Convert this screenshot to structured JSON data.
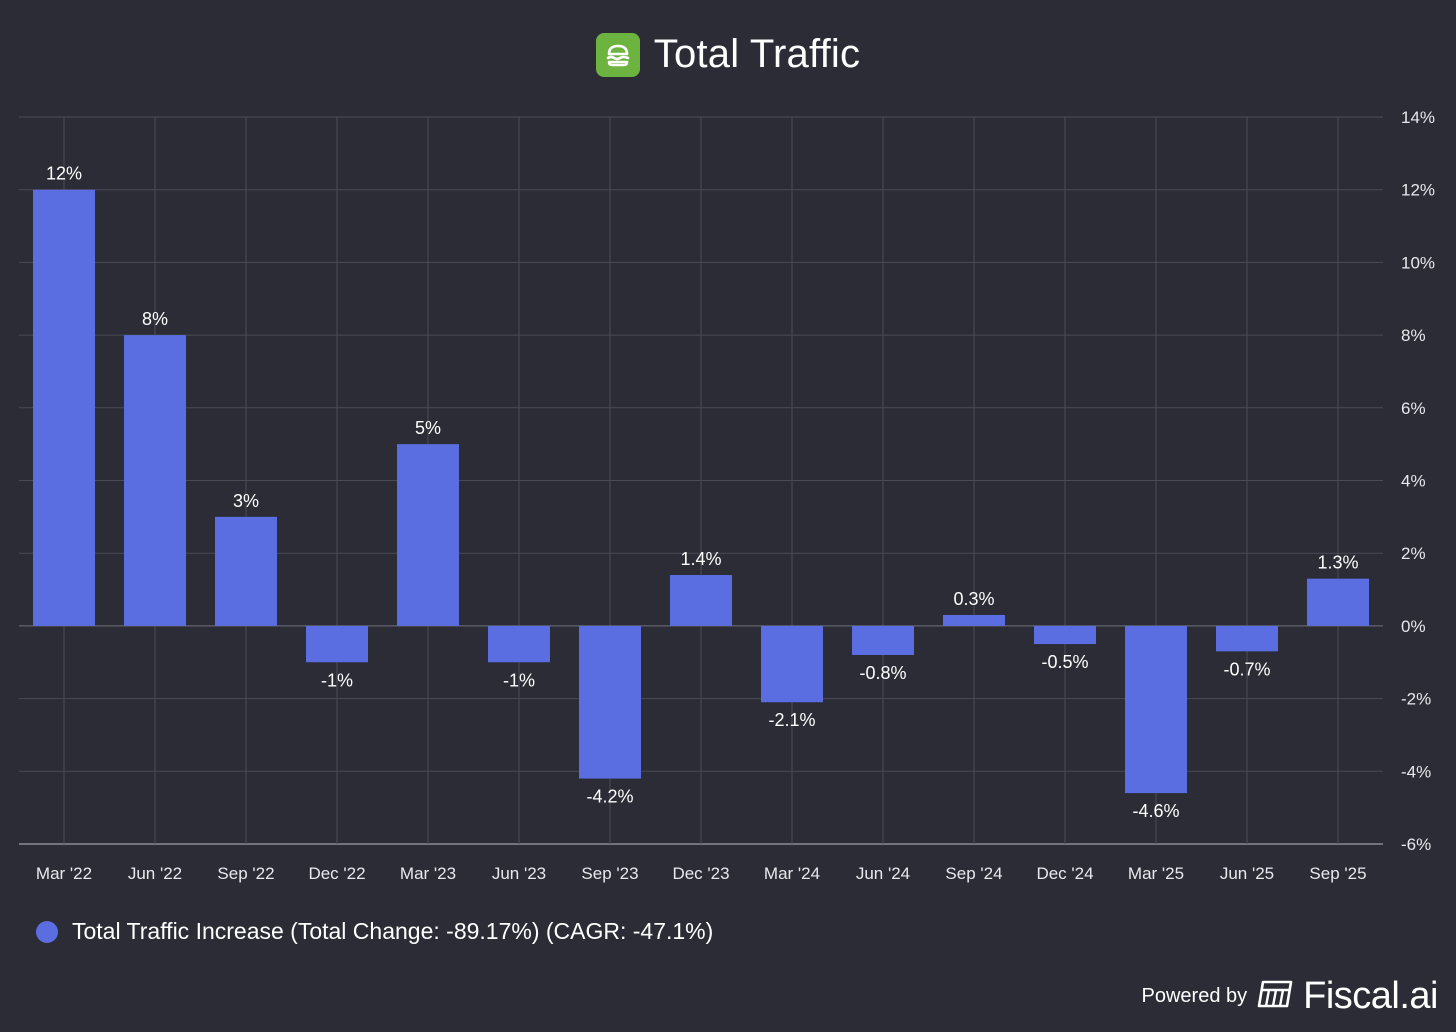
{
  "header": {
    "title": "Total Traffic",
    "logo_icon": "burger-icon",
    "logo_color": "#6cb33f"
  },
  "chart_data": {
    "type": "bar",
    "title": "Total Traffic",
    "categories": [
      "Mar '22",
      "Jun '22",
      "Sep '22",
      "Dec '22",
      "Mar '23",
      "Jun '23",
      "Sep '23",
      "Dec '23",
      "Mar '24",
      "Jun '24",
      "Sep '24",
      "Dec '24",
      "Mar '25",
      "Jun '25",
      "Sep '25"
    ],
    "series": [
      {
        "name": "Total Traffic Increase (Total Change: -89.17%) (CAGR: -47.1%)",
        "values": [
          12,
          8,
          3,
          -1,
          5,
          -1,
          -4.2,
          1.4,
          -2.1,
          -0.8,
          0.3,
          -0.5,
          -4.6,
          -0.7,
          1.3
        ],
        "labels": [
          "12%",
          "8%",
          "3%",
          "-1%",
          "5%",
          "-1%",
          "-4.2%",
          "1.4%",
          "-2.1%",
          "-0.8%",
          "0.3%",
          "-0.5%",
          "-4.6%",
          "-0.7%",
          "1.3%"
        ],
        "color": "#5b6ee1"
      }
    ],
    "ylim": [
      -6,
      14
    ],
    "yticks": [
      14,
      12,
      10,
      8,
      6,
      4,
      2,
      0,
      -2,
      -4,
      -6
    ],
    "ytick_labels": [
      "14%",
      "12%",
      "10%",
      "8%",
      "6%",
      "4%",
      "2%",
      "0%",
      "-2%",
      "-4%",
      "-6%"
    ],
    "y_axis_side": "right",
    "xlabel": "",
    "ylabel": "",
    "grid": true,
    "legend_position": "bottom-left"
  },
  "footer": {
    "powered_by": "Powered by",
    "brand": "Fiscal.ai",
    "brand_icon": "fiscal-logo-icon"
  },
  "colors": {
    "background": "#2b2c35",
    "grid": "#4a4b56",
    "bar": "#5b6ee1"
  }
}
